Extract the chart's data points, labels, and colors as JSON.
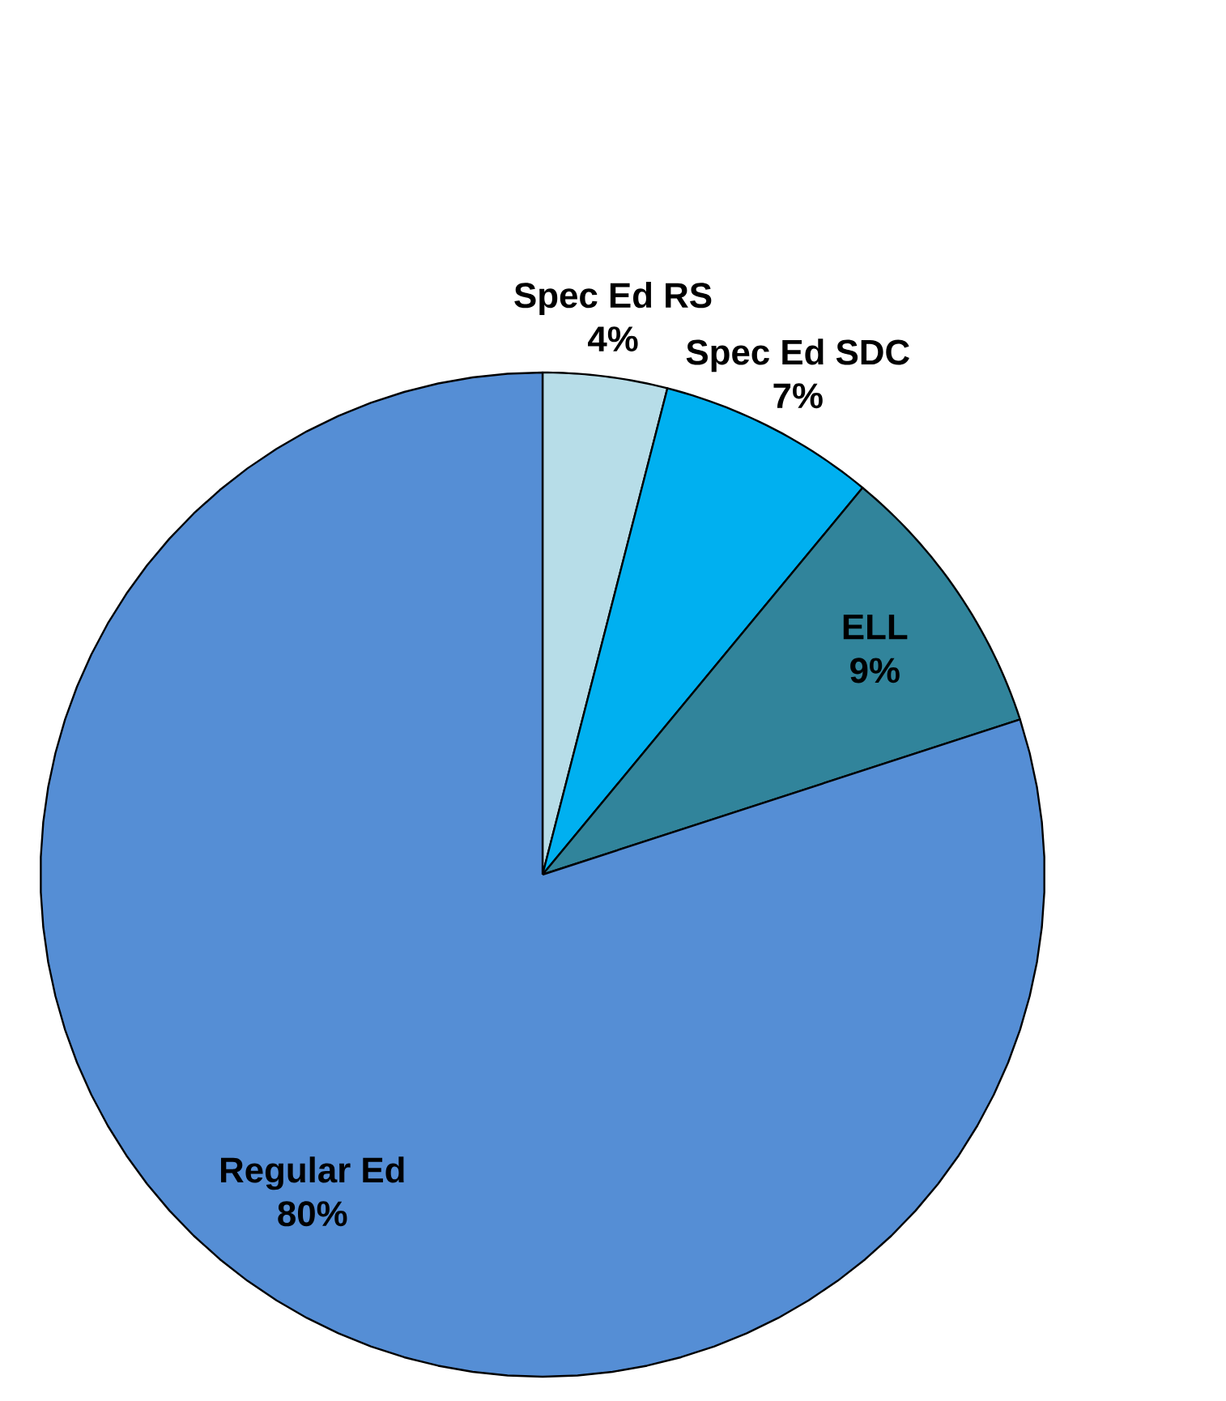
{
  "chart_data": {
    "type": "pie",
    "categories": [
      "Spec Ed RS",
      "Spec Ed SDC",
      "ELL",
      "Regular Ed"
    ],
    "values": [
      4,
      7,
      9,
      80
    ],
    "colors": [
      "#b7dde8",
      "#00b0f0",
      "#31849b",
      "#558ed5"
    ],
    "value_labels": [
      "4%",
      "7%",
      "9%",
      "80%"
    ]
  }
}
